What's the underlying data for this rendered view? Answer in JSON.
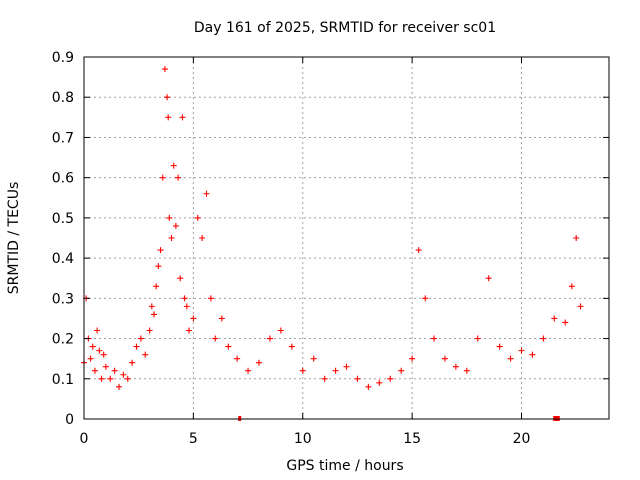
{
  "chart_data": {
    "type": "scatter",
    "title": "Day 161 of 2025, SRMTID for receiver sc01",
    "xlabel": "GPS time / hours",
    "ylabel": "SRMTID / TECUs",
    "xlim": [
      0,
      24
    ],
    "ylim": [
      0,
      0.9
    ],
    "xticks": [
      "0",
      "5",
      "10",
      "15",
      "20"
    ],
    "yticks": [
      "0",
      "0.1",
      "0.2",
      "0.3",
      "0.4",
      "0.5",
      "0.6",
      "0.7",
      "0.8",
      "0.9"
    ],
    "grid": true,
    "marker": "plus",
    "color": "#ff0000",
    "series": [
      {
        "name": "sc01",
        "x": [
          0.0,
          0.1,
          0.2,
          0.3,
          0.4,
          0.5,
          0.6,
          0.7,
          0.8,
          0.9,
          1.0,
          1.2,
          1.4,
          1.6,
          1.8,
          2.0,
          2.2,
          2.4,
          2.6,
          2.8,
          3.0,
          3.1,
          3.2,
          3.3,
          3.4,
          3.5,
          3.6,
          3.7,
          3.8,
          3.85,
          3.9,
          4.0,
          4.1,
          4.2,
          4.3,
          4.4,
          4.5,
          4.6,
          4.7,
          4.8,
          5.0,
          5.2,
          5.4,
          5.6,
          5.8,
          6.0,
          6.3,
          6.6,
          7.0,
          7.5,
          8.0,
          8.5,
          9.0,
          9.5,
          10.0,
          10.5,
          11.0,
          11.5,
          12.0,
          12.5,
          13.0,
          13.5,
          14.0,
          14.5,
          15.0,
          15.3,
          15.6,
          16.0,
          16.5,
          17.0,
          17.5,
          18.0,
          18.5,
          19.0,
          19.5,
          20.0,
          20.5,
          21.0,
          21.5,
          22.0,
          22.3,
          22.5,
          22.7
        ],
        "y": [
          0.14,
          0.3,
          0.2,
          0.15,
          0.18,
          0.12,
          0.22,
          0.17,
          0.1,
          0.16,
          0.13,
          0.1,
          0.12,
          0.08,
          0.11,
          0.1,
          0.14,
          0.18,
          0.2,
          0.16,
          0.22,
          0.28,
          0.26,
          0.33,
          0.38,
          0.42,
          0.6,
          0.87,
          0.8,
          0.75,
          0.5,
          0.45,
          0.63,
          0.48,
          0.6,
          0.35,
          0.75,
          0.3,
          0.28,
          0.22,
          0.25,
          0.5,
          0.45,
          0.56,
          0.3,
          0.2,
          0.25,
          0.18,
          0.15,
          0.12,
          0.14,
          0.2,
          0.22,
          0.18,
          0.12,
          0.15,
          0.1,
          0.12,
          0.13,
          0.1,
          0.08,
          0.09,
          0.1,
          0.12,
          0.15,
          0.42,
          0.3,
          0.2,
          0.15,
          0.13,
          0.12,
          0.2,
          0.35,
          0.18,
          0.15,
          0.17,
          0.16,
          0.2,
          0.25,
          0.24,
          0.33,
          0.45,
          0.28
        ]
      }
    ],
    "gaps": [
      {
        "start": 7.05,
        "end": 7.18
      },
      {
        "start": 21.45,
        "end": 21.75
      }
    ]
  }
}
